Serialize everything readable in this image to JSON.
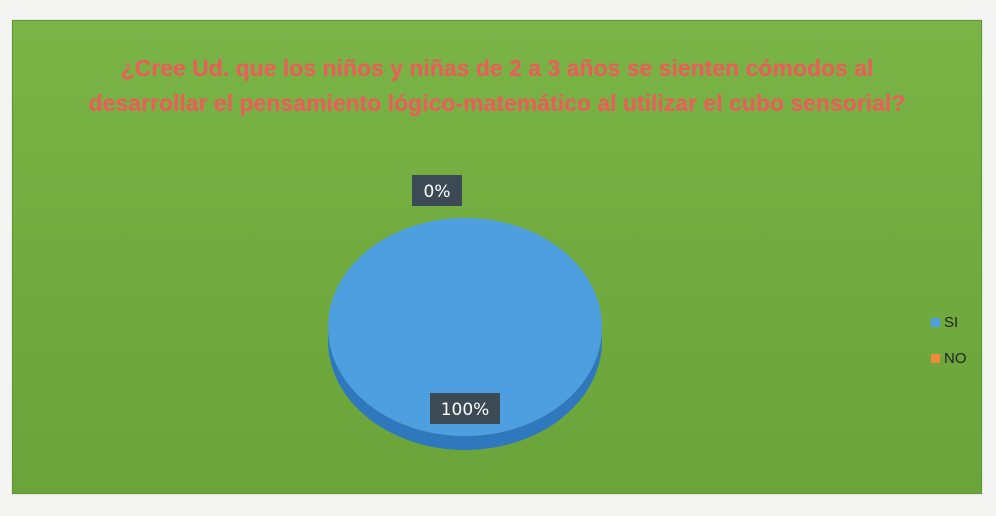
{
  "colors": {
    "si": "#4e9fe0",
    "si_side": "#2f78bd",
    "no": "#f08a3a",
    "label_bg": "#3b4a55"
  },
  "chart_data": {
    "type": "pie",
    "title": "¿Cree Ud. que los niños y niñas de 2 a 3 años se sienten cómodos al desarrollar el pensamiento lógico-matemático al utilizar el cubo sensorial?",
    "categories": [
      "SI",
      "NO"
    ],
    "values": [
      100,
      0
    ],
    "data_labels": [
      "100%",
      "0%"
    ],
    "legend_position": "right",
    "style": "3d"
  }
}
